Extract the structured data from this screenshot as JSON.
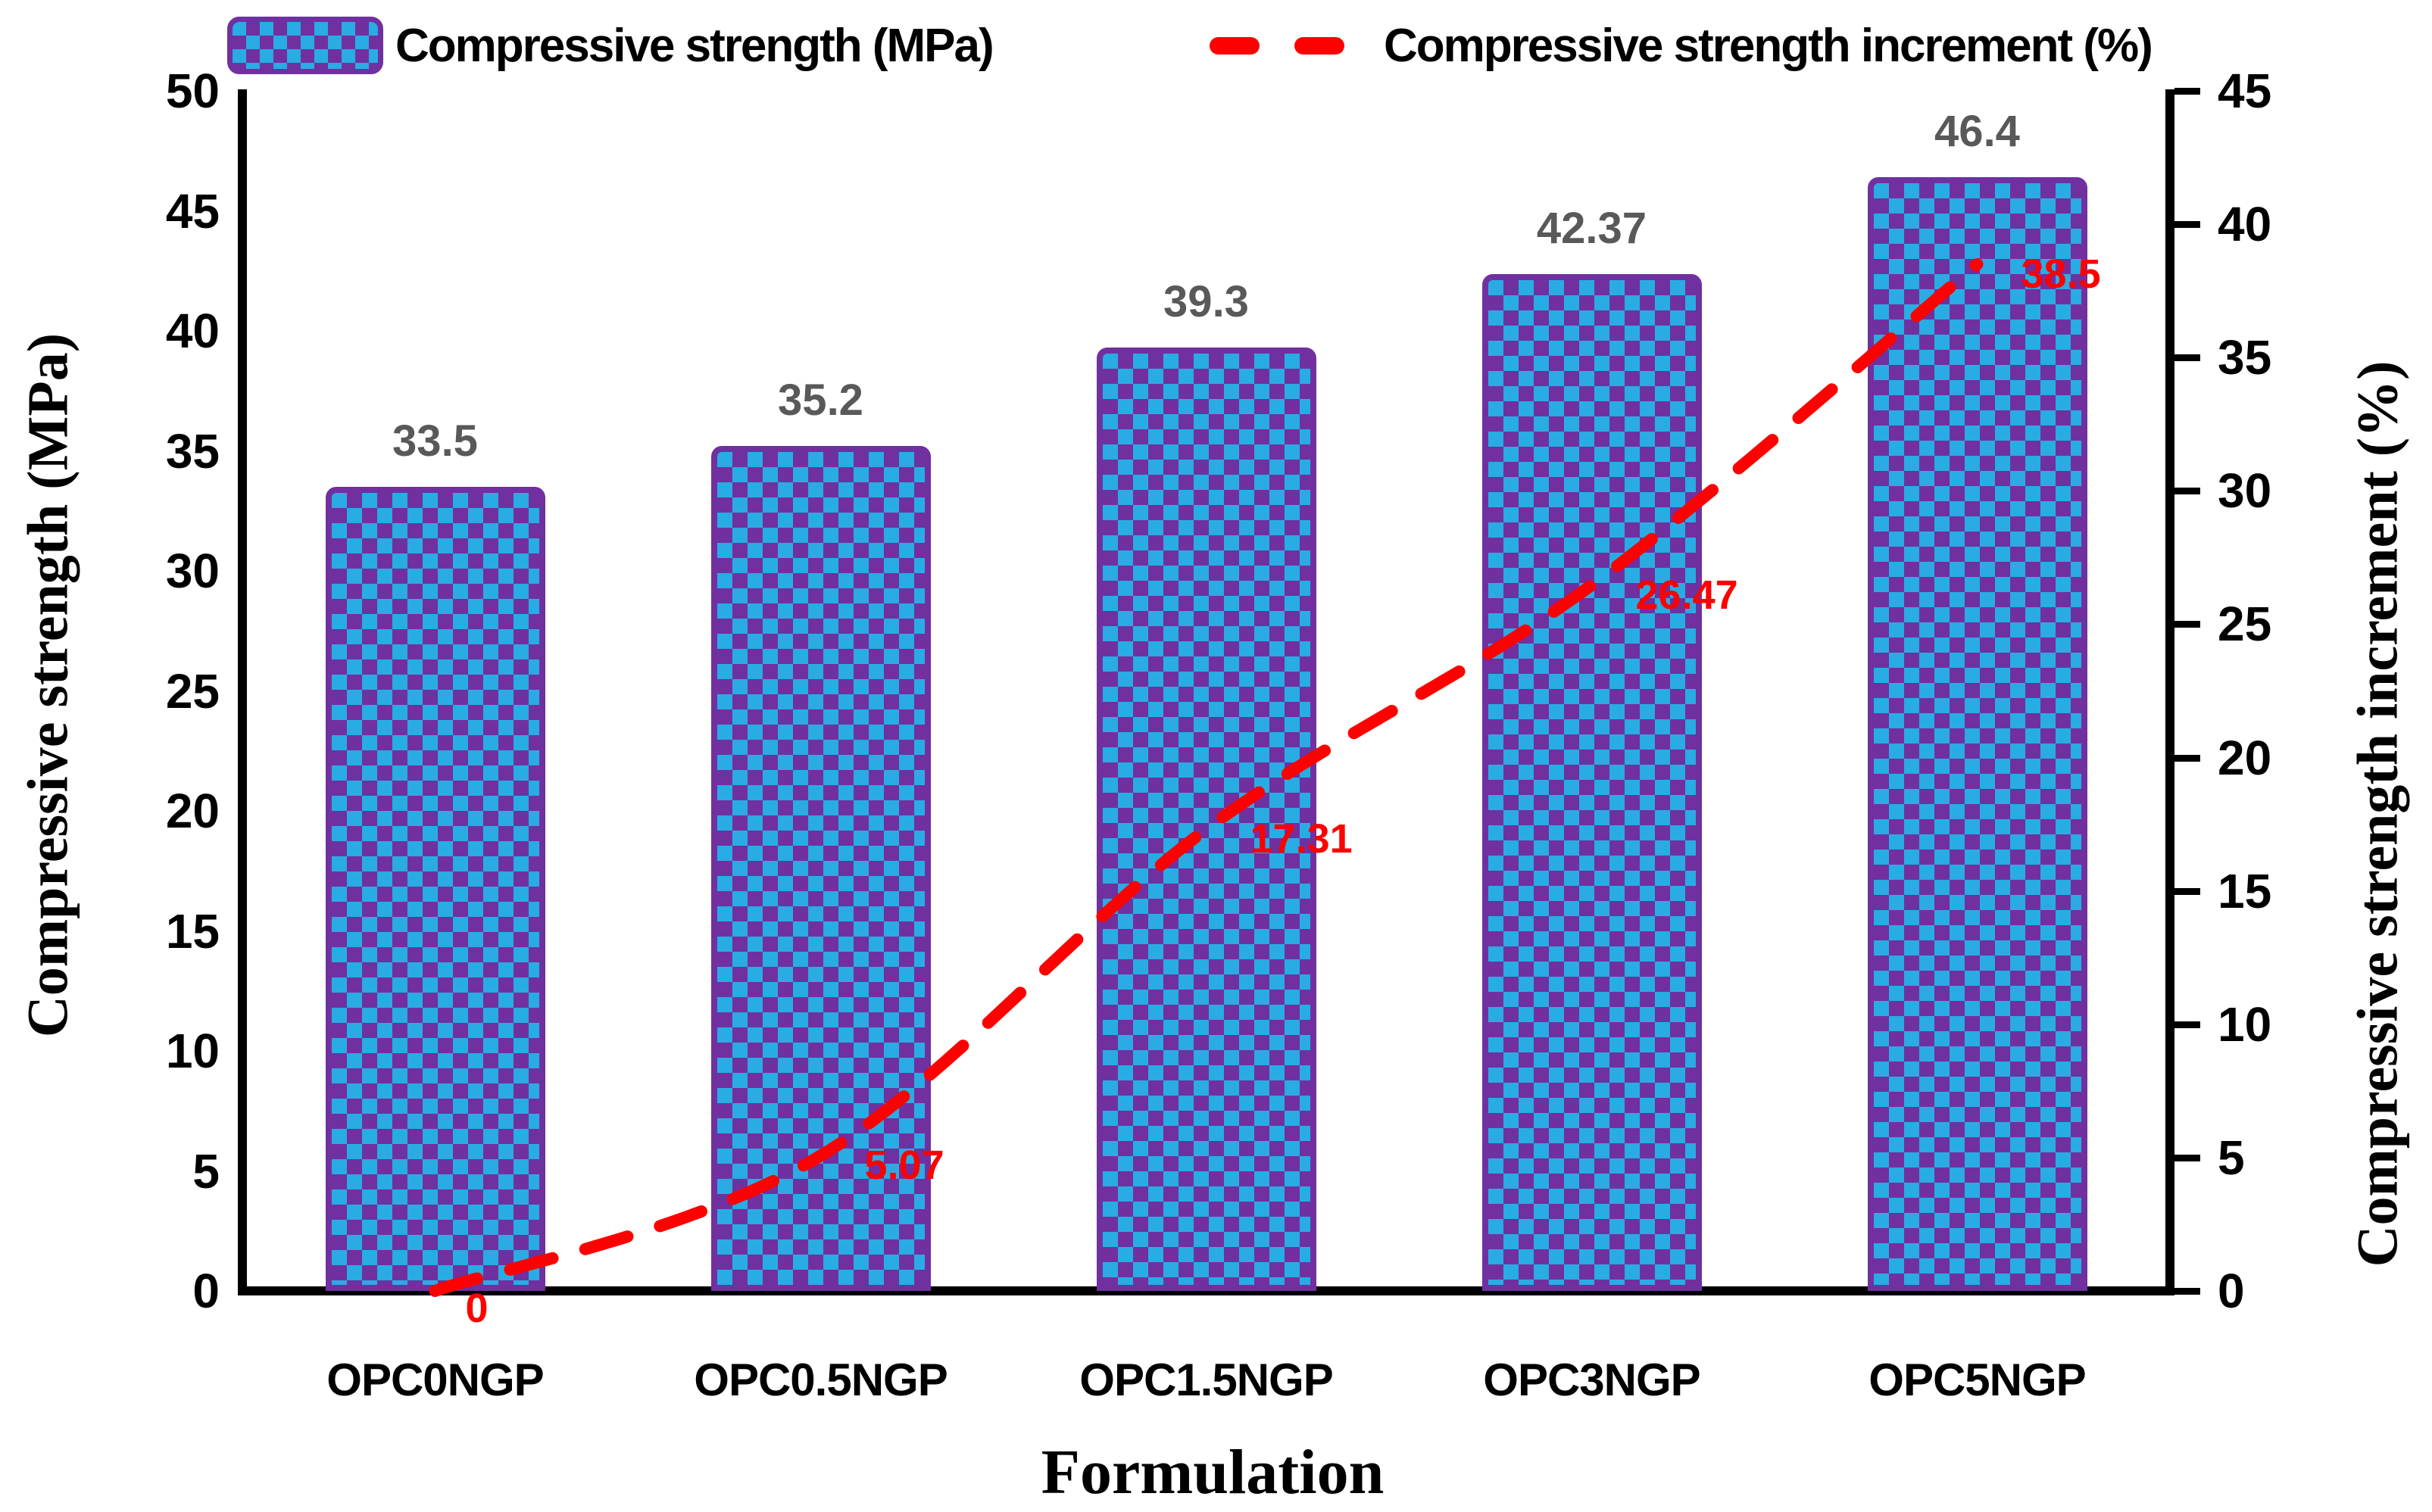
{
  "legend": {
    "bar_label": "Compressive strength (MPa)",
    "line_label": "Compressive strength increment (%)"
  },
  "axes": {
    "x_title": "Formulation",
    "y_left_title": "Compressive strength (MPa)",
    "y_right_title": "Compressive strength increment (%)"
  },
  "chart_data": {
    "type": "bar",
    "categories": [
      "OPC0NGP",
      "OPC0.5NGP",
      "OPC1.5NGP",
      "OPC3NGP",
      "OPC5NGP"
    ],
    "series": [
      {
        "name": "Compressive strength (MPa)",
        "type": "bar",
        "axis": "left",
        "values": [
          33.5,
          35.2,
          39.3,
          42.37,
          46.4
        ],
        "labels": [
          "33.5",
          "35.2",
          "39.3",
          "42.37",
          "46.4"
        ]
      },
      {
        "name": "Compressive strength increment (%)",
        "type": "line",
        "axis": "right",
        "line_style": "dashed",
        "values": [
          0,
          5.07,
          17.31,
          26.47,
          38.5
        ],
        "labels": [
          "0",
          "5.07",
          "17.31",
          "26.47",
          "38.5"
        ]
      }
    ],
    "xlabel": "Formulation",
    "ylabel_left": "Compressive strength (MPa)",
    "ylabel_right": "Compressive strength increment (%)",
    "ylim_left": [
      0,
      50
    ],
    "ylim_right": [
      0,
      45
    ],
    "ytick_step": 5,
    "grid": false,
    "legend_position": "top",
    "colors": {
      "bar_fill_blue": "#29ACE3",
      "bar_fill_purple": "#7030A0",
      "bar_border": "#7030A0",
      "line": "#FF0000",
      "bar_value_label": "#595959",
      "axis": "#000000"
    }
  }
}
